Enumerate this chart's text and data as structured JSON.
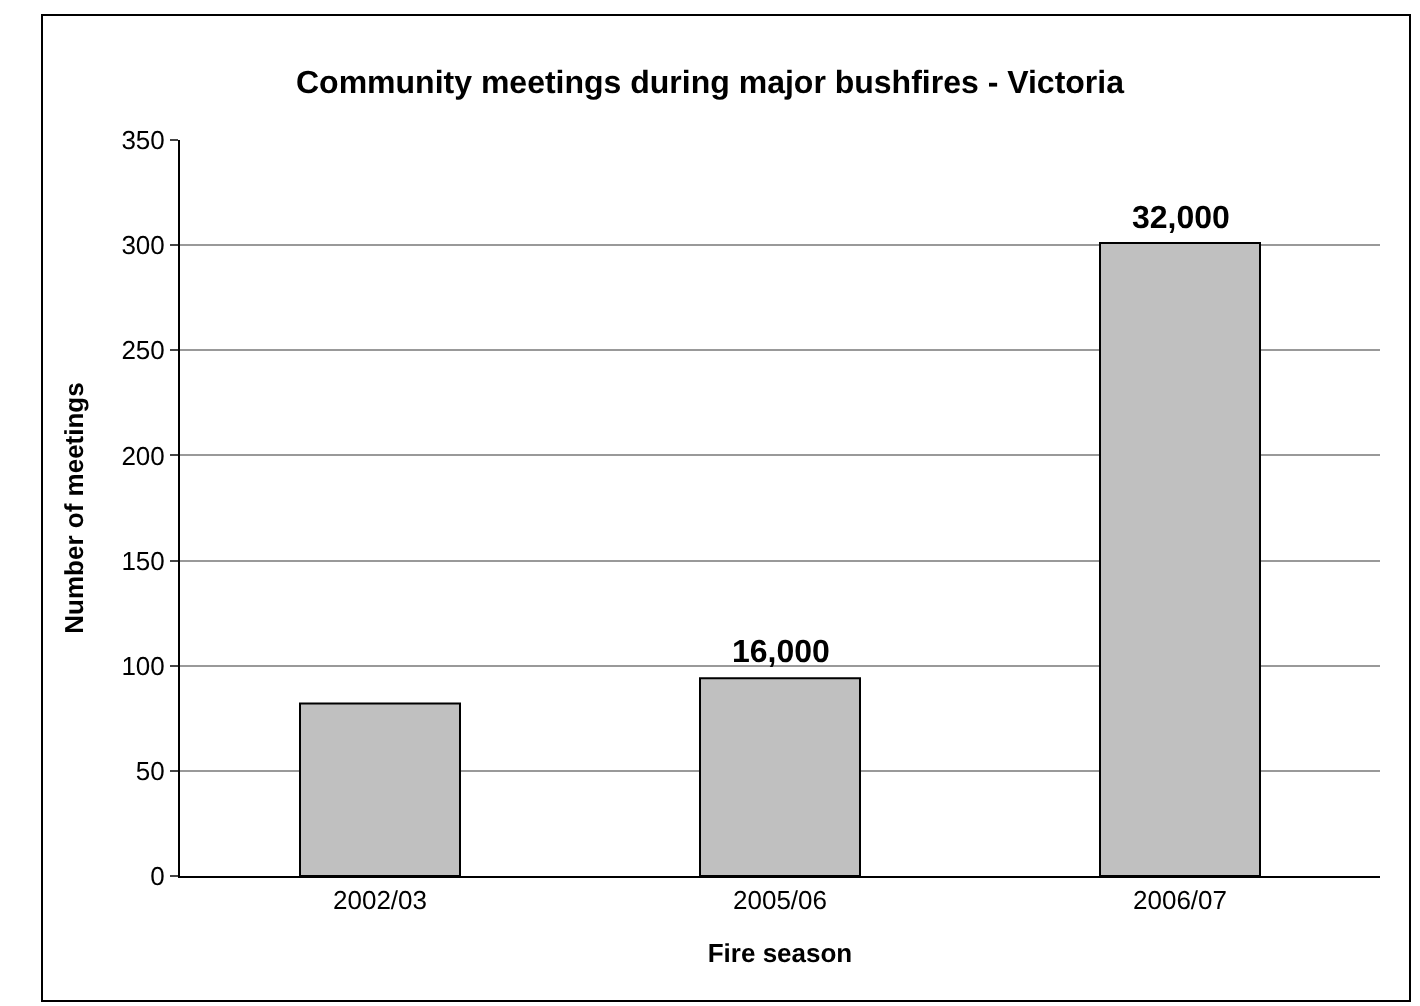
{
  "chart_data": {
    "type": "bar",
    "title": "Community meetings during major bushfires - Victoria",
    "xlabel": "Fire season",
    "ylabel": "Number of meetings",
    "categories": [
      "2002/03",
      "2005/06",
      "2006/07"
    ],
    "values": [
      82,
      94,
      301
    ],
    "color": "#c0c0c0",
    "annotations": [
      {
        "text": "16,000",
        "x": "2005/06",
        "y": 94
      },
      {
        "text": "32,000",
        "x": "2006/07",
        "y": 301
      }
    ],
    "ylim": [
      0,
      350
    ],
    "yticks": [
      0,
      50,
      100,
      150,
      200,
      250,
      300,
      350
    ],
    "grid": "y"
  }
}
